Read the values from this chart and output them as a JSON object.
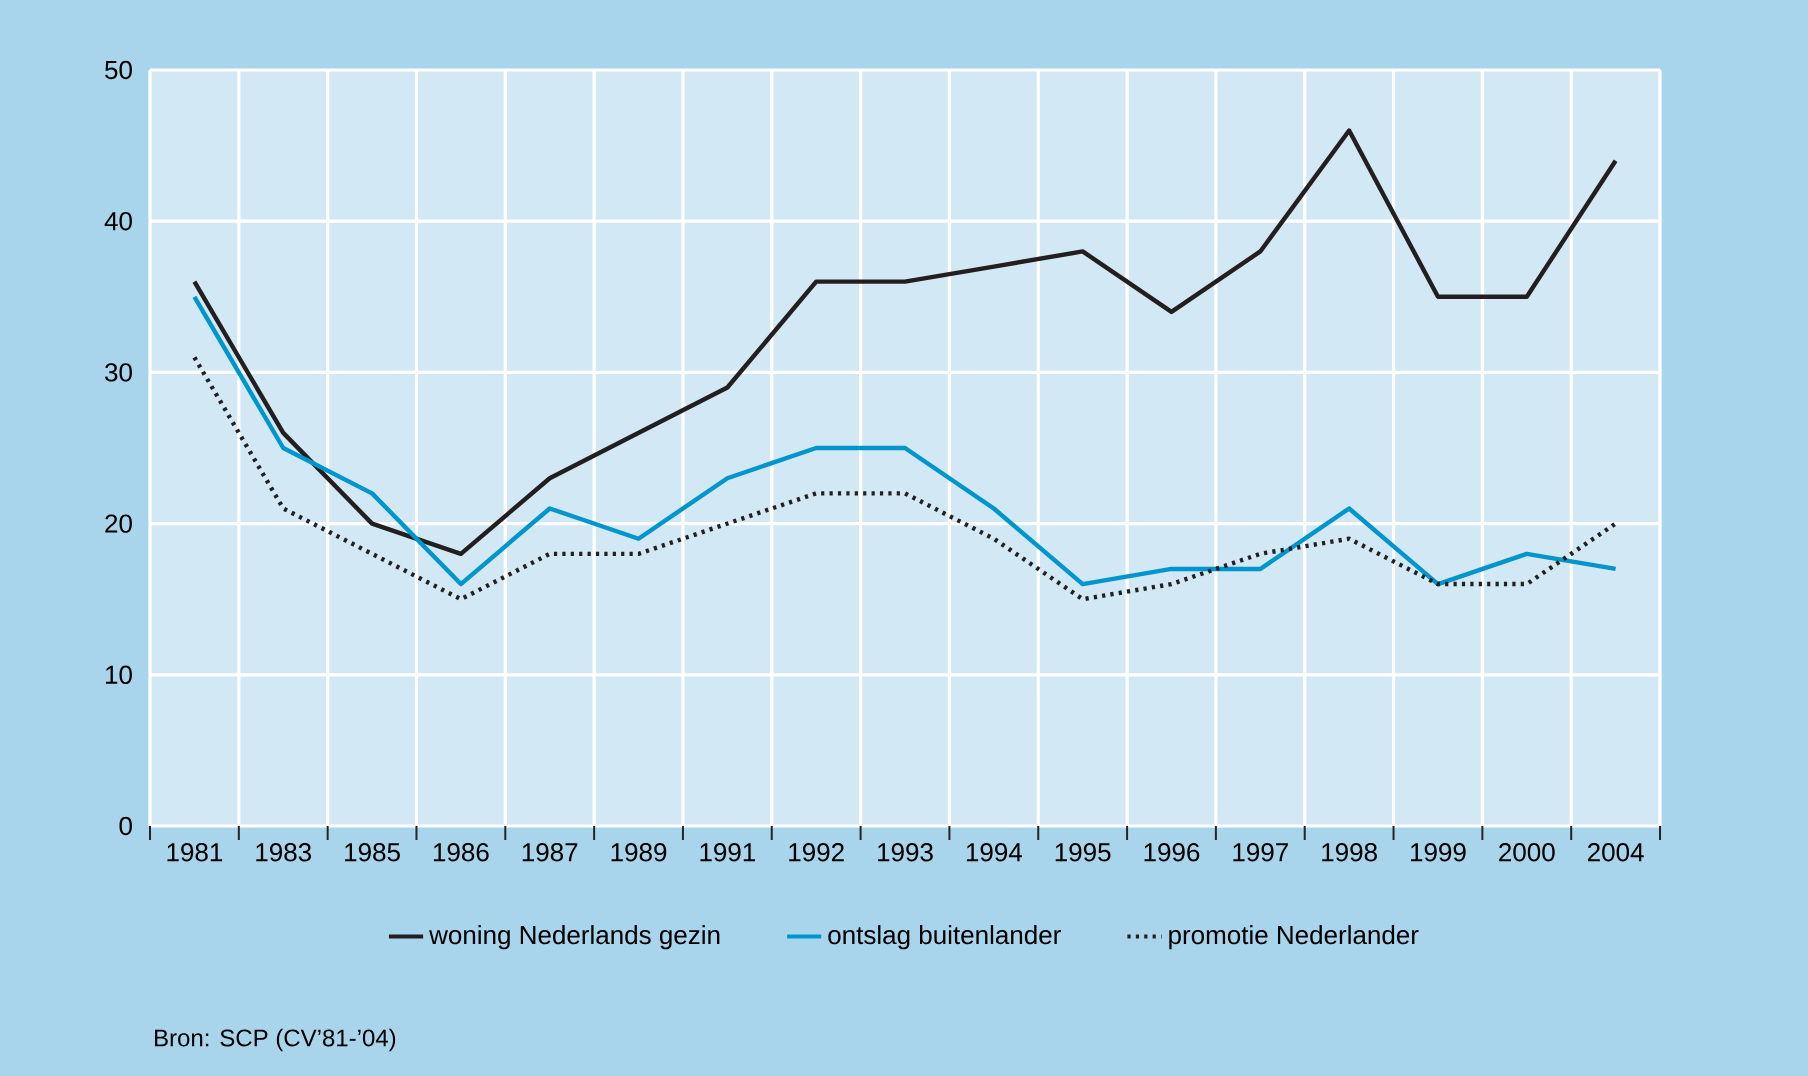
{
  "chart_data": {
    "type": "line",
    "categories": [
      "1981",
      "1983",
      "1985",
      "1986",
      "1987",
      "1989",
      "1991",
      "1992",
      "1993",
      "1994",
      "1995",
      "1996",
      "1997",
      "1998",
      "1999",
      "2000",
      "2004"
    ],
    "series": [
      {
        "name": "woning Nederlands gezin",
        "color": "#231f20",
        "line_style": "solid",
        "values": [
          36,
          26,
          20,
          18,
          23,
          26,
          29,
          36,
          36,
          37,
          38,
          34,
          38,
          46,
          35,
          35,
          44
        ]
      },
      {
        "name": "ontslag buitenlander",
        "color": "#0095cc",
        "line_style": "solid",
        "values": [
          35,
          25,
          22,
          16,
          21,
          19,
          23,
          25,
          25,
          21,
          16,
          17,
          17,
          21,
          16,
          18,
          17
        ]
      },
      {
        "name": "promotie Nederlander",
        "color": "#231f20",
        "line_style": "dotted",
        "values": [
          31,
          21,
          18,
          15,
          18,
          18,
          20,
          22,
          22,
          19,
          15,
          16,
          18,
          19,
          16,
          16,
          20
        ]
      }
    ],
    "ylim": [
      0,
      50
    ],
    "yticks": [
      0,
      10,
      20,
      30,
      40,
      50
    ],
    "grid": true,
    "legend": "bottom",
    "marker": "none",
    "annotations": [
      "Bron: SCP (CV’81-’04)"
    ]
  }
}
